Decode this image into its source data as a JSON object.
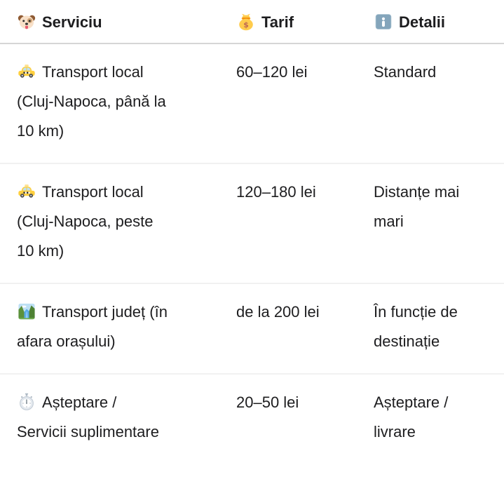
{
  "table": {
    "columns": [
      {
        "icon": "dog-face-icon",
        "label": "Serviciu"
      },
      {
        "icon": "money-bag-icon",
        "label": "Tarif"
      },
      {
        "icon": "info-icon",
        "label": "Detalii"
      }
    ],
    "rows": [
      {
        "icon": "taxi-icon",
        "service": "Transport local\n(Cluj-Napoca, până la\n10 km)",
        "tarif": "60–120 lei",
        "detalii": "Standard"
      },
      {
        "icon": "taxi-icon",
        "service": "Transport local\n(Cluj-Napoca, peste\n10 km)",
        "tarif": "120–180 lei",
        "detalii": "Distanțe mai\nmari"
      },
      {
        "icon": "national-park-icon",
        "service": "Transport județ (în\nafara orașului)",
        "tarif": "de la 200 lei",
        "detalii": "În funcție de\ndestinație"
      },
      {
        "icon": "stopwatch-icon",
        "service": "Așteptare /\nServicii suplimentare",
        "tarif": "20–50 lei",
        "detalii": "Așteptare /\nlivrare"
      }
    ]
  },
  "colors": {
    "text": "#1d1d1f",
    "background": "#ffffff",
    "header_divider": "#d6d6d6",
    "row_divider": "#f1f1f1",
    "info_icon_blue": "#84a5bb",
    "taxi_yellow": "#ffcf3e",
    "money_bag_gold": "#ffcc4d"
  }
}
